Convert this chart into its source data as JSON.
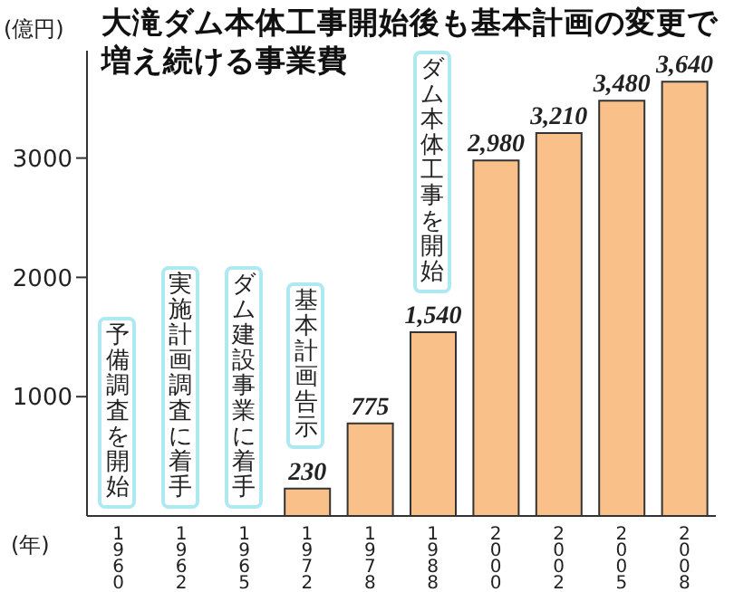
{
  "chart_data": {
    "type": "bar",
    "title": "大滝ダム本体工事開始後も基本計画の変更で増え続ける事業費",
    "ylabel": "(億円)",
    "xlabel": "(年)",
    "categories": [
      "1960",
      "1962",
      "1965",
      "1972",
      "1978",
      "1988",
      "2000",
      "2002",
      "2005",
      "2008"
    ],
    "values": [
      null,
      null,
      null,
      230,
      775,
      1540,
      2980,
      3210,
      3480,
      3640
    ],
    "value_labels": [
      null,
      null,
      null,
      "230",
      "775",
      "1,540",
      "2,980",
      "3,210",
      "3,480",
      "3,640"
    ],
    "color": "#f9c08a",
    "ylim": [
      0,
      3900
    ],
    "yticks": [
      1000,
      2000,
      3000
    ],
    "grid": false,
    "legend": false,
    "annotations": [
      "予備調査を開始",
      "実施計画調査に着手",
      "ダム建設事業に着手",
      "基本計画告示",
      "ダム本体工事を開始"
    ]
  }
}
